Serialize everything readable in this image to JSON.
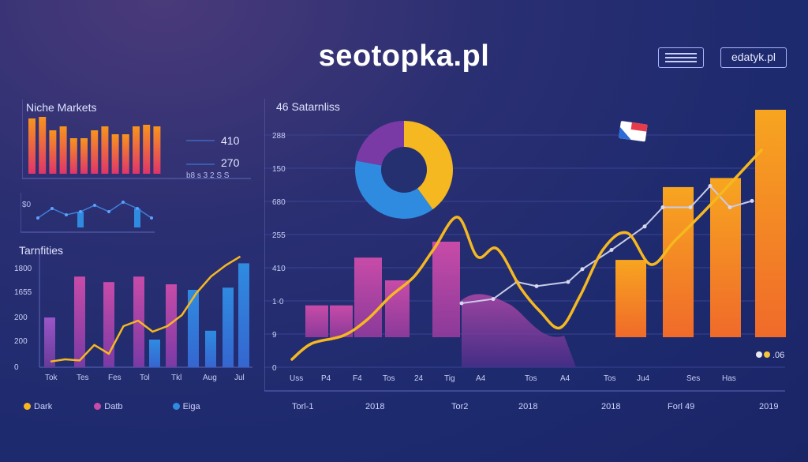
{
  "header": {
    "brand": "seotopka.pl",
    "site_button": "edatyk.pl"
  },
  "colors": {
    "orange": "#f7941d",
    "magenta": "#c84ba8",
    "blue": "#2f8be0",
    "yellow": "#f5b820",
    "purple": "#7a3aa5"
  },
  "chart_data": [
    {
      "type": "bar",
      "title": "Niche Markets",
      "values": [
        70,
        72,
        55,
        60,
        45,
        45,
        55,
        60,
        50,
        50,
        60,
        62,
        60
      ],
      "stats": [
        "410",
        "270"
      ],
      "stat_ticks": "b8 s 3 2 S S"
    },
    {
      "type": "line",
      "title": "",
      "ylabel": "$0",
      "values": [
        6,
        12,
        8,
        10,
        14,
        10,
        16,
        12,
        6
      ],
      "highlight": [
        3,
        7
      ]
    },
    {
      "type": "bar",
      "title": "Tarnfities",
      "y_ticks": [
        "1800",
        "1655",
        "200",
        "200",
        "0"
      ],
      "categories": [
        "Tok",
        "Tes",
        "Fes",
        "Tol",
        "Tkl",
        "Aug",
        "Jul"
      ],
      "bars": [
        {
          "value": 45,
          "color": "purple"
        },
        {
          "value": 82,
          "color": "magenta"
        },
        {
          "value": 77,
          "color": "magenta"
        },
        {
          "value": 82,
          "color": "magenta"
        },
        {
          "value": 25,
          "color": "blue"
        },
        {
          "value": 75,
          "color": "magenta"
        },
        {
          "value": 70,
          "color": "blue"
        },
        {
          "value": 33,
          "color": "blue"
        },
        {
          "value": 72,
          "color": "blue"
        },
        {
          "value": 94,
          "color": "blue"
        }
      ],
      "line": [
        3,
        5,
        4,
        18,
        10,
        35,
        40,
        30,
        35,
        45,
        65,
        80,
        90,
        98
      ]
    },
    {
      "type": "bar",
      "title": "46 Satarnliss",
      "y_ticks": [
        "288",
        "150",
        "680",
        "255",
        "410",
        "1·0",
        "9",
        "0"
      ],
      "categories": [
        "Uss",
        "P4",
        "F4",
        "Tos",
        "24",
        "Tig",
        "A4",
        "Tos",
        "A4",
        "Tos",
        "Ju4",
        "Ses",
        "Has"
      ],
      "bars": [
        {
          "value": 14,
          "color": "magenta"
        },
        {
          "value": 14,
          "color": "magenta"
        },
        {
          "value": 35,
          "color": "magenta"
        },
        {
          "value": 25,
          "color": "magenta"
        },
        {
          "value": 42,
          "color": "magenta"
        },
        {
          "value": 34,
          "color": "orange"
        },
        {
          "value": 66,
          "color": "orange"
        },
        {
          "value": 70,
          "color": "orange"
        },
        {
          "value": 100,
          "color": "orange"
        }
      ],
      "line_yellow": [
        2,
        6,
        8,
        12,
        18,
        23,
        30,
        38,
        28,
        30,
        20,
        14,
        10,
        18,
        30,
        34,
        26,
        32,
        40,
        55
      ],
      "line_gray": [
        30,
        32,
        40,
        38,
        40,
        46,
        55,
        66,
        75,
        75,
        85,
        75,
        78
      ],
      "end_label": ".06"
    },
    {
      "type": "pie",
      "title": "",
      "slices": [
        {
          "label": "",
          "value": 40,
          "color": "yellow"
        },
        {
          "label": "",
          "value": 38,
          "color": "blue"
        },
        {
          "label": "",
          "value": 22,
          "color": "purple"
        }
      ]
    }
  ],
  "legend": [
    {
      "label": "Dark",
      "color": "yellow"
    },
    {
      "label": "Datb",
      "color": "magenta"
    },
    {
      "label": "Eiga",
      "color": "blue"
    }
  ],
  "bottom_labels": [
    "Torl-1",
    "2018",
    "Tor2",
    "2018",
    "2018",
    "Forl 49",
    "2019"
  ]
}
